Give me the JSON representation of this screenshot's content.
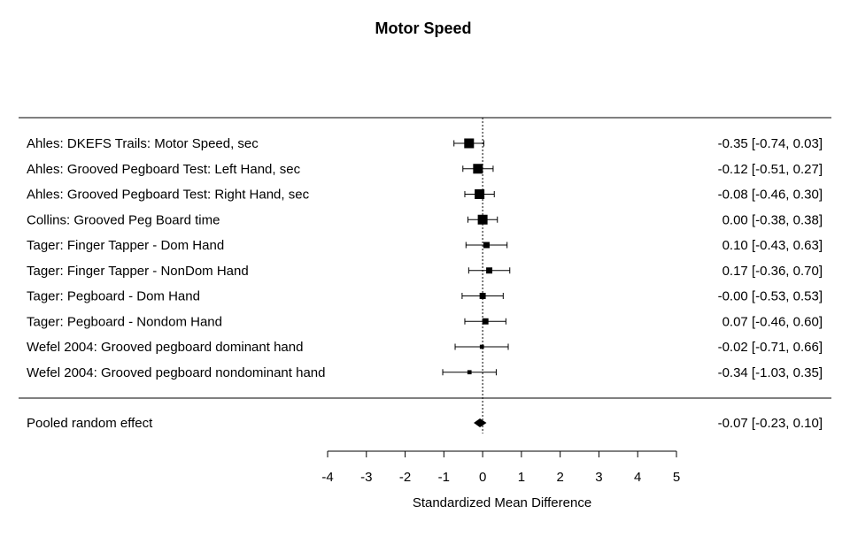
{
  "chart_data": {
    "type": "forest",
    "title": "Motor Speed",
    "xlabel": "Standardized Mean Difference",
    "xlim": [
      -4,
      5
    ],
    "xticks": [
      -4,
      -3,
      -2,
      -1,
      0,
      1,
      2,
      3,
      4,
      5
    ],
    "reference_line": 0,
    "studies": [
      {
        "label": "Ahles: DKEFS Trails: Motor Speed, sec",
        "estimate": -0.35,
        "lower": -0.74,
        "upper": 0.03,
        "ci_text": "-0.35 [-0.74, 0.03]",
        "weight": 1.0
      },
      {
        "label": "Ahles: Grooved Pegboard Test: Left Hand, sec",
        "estimate": -0.12,
        "lower": -0.51,
        "upper": 0.27,
        "ci_text": "-0.12 [-0.51, 0.27]",
        "weight": 1.0
      },
      {
        "label": "Ahles: Grooved Pegboard Test: Right Hand, sec",
        "estimate": -0.08,
        "lower": -0.46,
        "upper": 0.3,
        "ci_text": "-0.08 [-0.46, 0.30]",
        "weight": 1.0
      },
      {
        "label": "Collins: Grooved Peg Board time",
        "estimate": 0.0,
        "lower": -0.38,
        "upper": 0.38,
        "ci_text": "0.00 [-0.38, 0.38]",
        "weight": 1.0
      },
      {
        "label": "Tager: Finger Tapper - Dom Hand",
        "estimate": 0.1,
        "lower": -0.43,
        "upper": 0.63,
        "ci_text": "0.10 [-0.43, 0.63]",
        "weight": 0.55
      },
      {
        "label": "Tager: Finger Tapper - NonDom Hand",
        "estimate": 0.17,
        "lower": -0.36,
        "upper": 0.7,
        "ci_text": "0.17 [-0.36, 0.70]",
        "weight": 0.55
      },
      {
        "label": "Tager: Pegboard - Dom Hand",
        "estimate": -0.0,
        "lower": -0.53,
        "upper": 0.53,
        "ci_text": "-0.00 [-0.53, 0.53]",
        "weight": 0.55
      },
      {
        "label": "Tager: Pegboard - Nondom Hand",
        "estimate": 0.07,
        "lower": -0.46,
        "upper": 0.6,
        "ci_text": "0.07 [-0.46, 0.60]",
        "weight": 0.55
      },
      {
        "label": "Wefel 2004: Grooved pegboard dominant hand",
        "estimate": -0.02,
        "lower": -0.71,
        "upper": 0.66,
        "ci_text": "-0.02 [-0.71, 0.66]",
        "weight": 0.3
      },
      {
        "label": "Wefel 2004: Grooved pegboard nondominant hand",
        "estimate": -0.34,
        "lower": -1.03,
        "upper": 0.35,
        "ci_text": "-0.34 [-1.03, 0.35]",
        "weight": 0.3
      }
    ],
    "pooled": {
      "label": "Pooled random effect",
      "estimate": -0.07,
      "lower": -0.23,
      "upper": 0.1,
      "ci_text": "-0.07 [-0.23, 0.10]"
    }
  }
}
